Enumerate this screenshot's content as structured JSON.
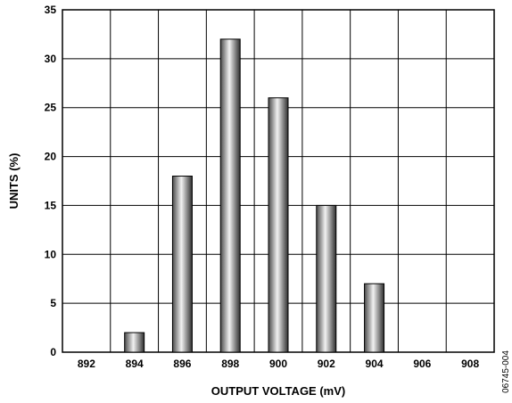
{
  "chart_data": {
    "type": "bar",
    "xlabel": "OUTPUT VOLTAGE (mV)",
    "ylabel": "UNITS (%)",
    "figure_id": "06745-004",
    "x_ticks": [
      "892",
      "894",
      "896",
      "898",
      "900",
      "902",
      "904",
      "906",
      "908"
    ],
    "y_ticks": [
      "0",
      "5",
      "10",
      "15",
      "20",
      "25",
      "30",
      "35"
    ],
    "ylim": [
      0,
      35
    ],
    "grid": true,
    "bar_style": "gradient-gray",
    "bars": [
      {
        "x": 894,
        "value": 2
      },
      {
        "x": 896,
        "value": 18
      },
      {
        "x": 898,
        "value": 32
      },
      {
        "x": 900,
        "value": 26
      },
      {
        "x": 902,
        "value": 15
      },
      {
        "x": 904,
        "value": 7
      }
    ]
  }
}
